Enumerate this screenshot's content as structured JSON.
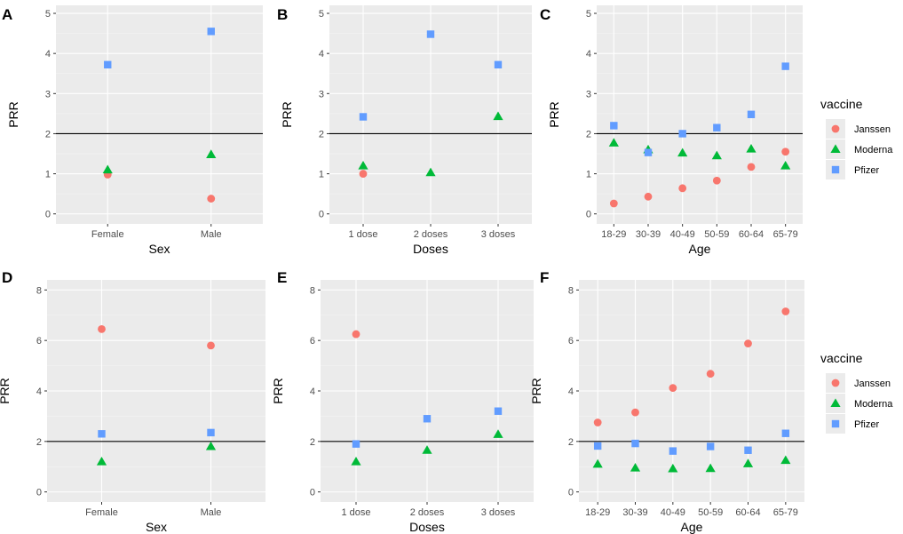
{
  "colors": {
    "Janssen": "#f8766d",
    "Moderna": "#00ba38",
    "Pfizer": "#619cff",
    "reference_line": "#000000"
  },
  "legend": {
    "title": "vaccine",
    "entries": [
      {
        "name": "Janssen",
        "shape": "circle"
      },
      {
        "name": "Moderna",
        "shape": "triangle"
      },
      {
        "name": "Pfizer",
        "shape": "square"
      }
    ]
  },
  "chart_data": [
    {
      "tag": "A",
      "type": "scatter",
      "xlabel": "Sex",
      "ylabel": "PRR",
      "categories": [
        "Female",
        "Male"
      ],
      "ylim": [
        -0.25,
        5.2
      ],
      "yticks": [
        0,
        1,
        2,
        3,
        4,
        5
      ],
      "hline": 2,
      "series": [
        {
          "name": "Janssen",
          "values": [
            0.98,
            0.38
          ]
        },
        {
          "name": "Moderna",
          "values": [
            1.1,
            1.48
          ]
        },
        {
          "name": "Pfizer",
          "values": [
            3.72,
            4.55
          ]
        }
      ]
    },
    {
      "tag": "B",
      "type": "scatter",
      "xlabel": "Doses",
      "ylabel": "PRR",
      "categories": [
        "1 dose",
        "2 doses",
        "3 doses"
      ],
      "ylim": [
        -0.25,
        5.2
      ],
      "yticks": [
        0,
        1,
        2,
        3,
        4,
        5
      ],
      "hline": 2,
      "series": [
        {
          "name": "Janssen",
          "values": [
            1.0,
            null,
            null
          ]
        },
        {
          "name": "Moderna",
          "values": [
            1.2,
            1.03,
            2.43
          ]
        },
        {
          "name": "Pfizer",
          "values": [
            2.42,
            4.48,
            3.72
          ]
        }
      ]
    },
    {
      "tag": "C",
      "type": "scatter",
      "xlabel": "Age",
      "ylabel": "PRR",
      "categories": [
        "18-29",
        "30-39",
        "40-49",
        "50-59",
        "60-64",
        "65-79"
      ],
      "ylim": [
        -0.25,
        5.2
      ],
      "yticks": [
        0,
        1,
        2,
        3,
        4,
        5
      ],
      "hline": 2,
      "series": [
        {
          "name": "Janssen",
          "values": [
            0.26,
            0.43,
            0.64,
            0.83,
            1.17,
            1.55
          ]
        },
        {
          "name": "Moderna",
          "values": [
            1.77,
            1.6,
            1.52,
            1.45,
            1.62,
            1.2
          ]
        },
        {
          "name": "Pfizer",
          "values": [
            2.2,
            1.53,
            2.0,
            2.15,
            2.48,
            3.68
          ]
        }
      ]
    },
    {
      "tag": "D",
      "type": "scatter",
      "xlabel": "Sex",
      "ylabel": "PRR",
      "categories": [
        "Female",
        "Male"
      ],
      "ylim": [
        -0.4,
        8.4
      ],
      "yticks": [
        0,
        2,
        4,
        6,
        8
      ],
      "hline": 2,
      "series": [
        {
          "name": "Janssen",
          "values": [
            6.45,
            5.8
          ]
        },
        {
          "name": "Moderna",
          "values": [
            1.2,
            1.8
          ]
        },
        {
          "name": "Pfizer",
          "values": [
            2.3,
            2.35
          ]
        }
      ]
    },
    {
      "tag": "E",
      "type": "scatter",
      "xlabel": "Doses",
      "ylabel": "PRR",
      "categories": [
        "1 dose",
        "2 doses",
        "3 doses"
      ],
      "ylim": [
        -0.4,
        8.4
      ],
      "yticks": [
        0,
        2,
        4,
        6,
        8
      ],
      "hline": 2,
      "series": [
        {
          "name": "Janssen",
          "values": [
            6.25,
            null,
            null
          ]
        },
        {
          "name": "Moderna",
          "values": [
            1.2,
            1.65,
            2.28
          ]
        },
        {
          "name": "Pfizer",
          "values": [
            1.9,
            2.9,
            3.2
          ]
        }
      ]
    },
    {
      "tag": "F",
      "type": "scatter",
      "xlabel": "Age",
      "ylabel": "PRR",
      "categories": [
        "18-29",
        "30-39",
        "40-49",
        "50-59",
        "60-64",
        "65-79"
      ],
      "ylim": [
        -0.4,
        8.4
      ],
      "yticks": [
        0,
        2,
        4,
        6,
        8
      ],
      "hline": 2,
      "series": [
        {
          "name": "Janssen",
          "values": [
            2.75,
            3.15,
            4.12,
            4.68,
            5.88,
            7.15
          ]
        },
        {
          "name": "Moderna",
          "values": [
            1.1,
            0.95,
            0.92,
            0.93,
            1.12,
            1.25
          ]
        },
        {
          "name": "Pfizer",
          "values": [
            1.82,
            1.92,
            1.62,
            1.8,
            1.65,
            2.32
          ]
        }
      ]
    }
  ]
}
